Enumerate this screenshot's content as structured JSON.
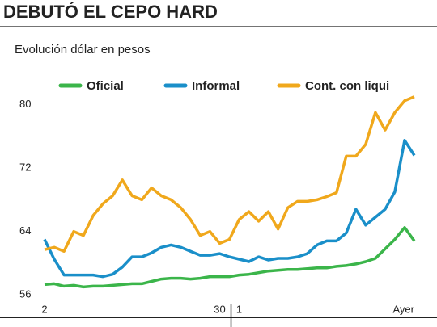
{
  "chart_data": {
    "type": "line",
    "title": "DEBUTÓ EL CEPO HARD",
    "subtitle": "Evolución dólar en pesos",
    "categories": [
      "2",
      null,
      null,
      null,
      null,
      null,
      null,
      null,
      null,
      null,
      null,
      null,
      null,
      null,
      null,
      null,
      null,
      null,
      "30",
      null,
      "1",
      null,
      null,
      null,
      null,
      null,
      null,
      null,
      null,
      null,
      null,
      null,
      null,
      null,
      null,
      null,
      null,
      null,
      "Ayer"
    ],
    "series": [
      {
        "name": "Oficial",
        "color": "#3bb54a",
        "values": [
          57.3,
          57.4,
          57.1,
          57.2,
          57.0,
          57.1,
          57.1,
          57.2,
          57.3,
          57.4,
          57.4,
          57.7,
          58,
          58.1,
          58.1,
          58,
          58.1,
          58.3,
          58.3,
          58.3,
          58.5,
          58.6,
          58.8,
          59,
          59.1,
          59.2,
          59.2,
          59.3,
          59.4,
          59.4,
          59.6,
          59.7,
          59.9,
          60.2,
          60.6,
          61.8,
          63,
          64.5,
          62.8
        ]
      },
      {
        "name": "Informal",
        "color": "#1a8fc9",
        "values": [
          63,
          60.5,
          58.5,
          58.5,
          58.5,
          58.5,
          58.3,
          58.6,
          59.5,
          60.8,
          60.8,
          61.3,
          62,
          62.3,
          62,
          61.5,
          61,
          61,
          61.2,
          60.8,
          60.5,
          60.2,
          60.8,
          60.4,
          60.6,
          60.6,
          60.8,
          61.2,
          62.3,
          62.8,
          62.8,
          63.8,
          66.8,
          64.8,
          65.8,
          66.8,
          69,
          75.5,
          73.6
        ]
      },
      {
        "name": "Cont. con liqui",
        "color": "#f0a81c",
        "values": [
          61.7,
          62,
          61.5,
          64,
          63.5,
          66,
          67.5,
          68.5,
          70.5,
          68.5,
          68,
          69.5,
          68.5,
          68,
          67,
          65.5,
          63.5,
          64,
          62.5,
          63,
          65.5,
          66.5,
          65.3,
          66.5,
          64.3,
          67,
          67.8,
          67.8,
          68,
          68.4,
          68.9,
          73.5,
          73.5,
          75,
          79,
          76.8,
          79,
          80.5,
          81
        ]
      }
    ],
    "ylim": [
      55,
      82
    ],
    "yticks": [
      56,
      64,
      72,
      80
    ],
    "grid": false
  }
}
